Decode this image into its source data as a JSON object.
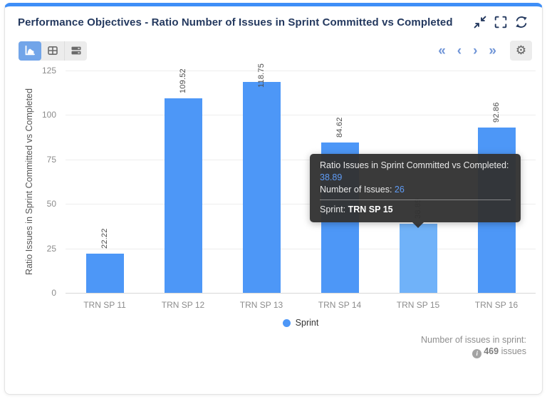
{
  "header": {
    "title": "Performance Objectives - Ratio Number of Issues in Sprint Committed vs Completed"
  },
  "toolbar": {
    "pagination": {
      "first": "«",
      "prev": "‹",
      "next": "›",
      "last": "»"
    },
    "gear_glyph": "⚙"
  },
  "chart_data": {
    "type": "bar",
    "categories": [
      "TRN SP 11",
      "TRN SP 12",
      "TRN SP 13",
      "TRN SP 14",
      "TRN SP 15",
      "TRN SP 16"
    ],
    "values": [
      22.22,
      109.52,
      118.75,
      84.62,
      38.89,
      92.86
    ],
    "value_labels": [
      "22.22",
      "109.52",
      "118.75",
      "84.62",
      "38.89",
      "92.86"
    ],
    "title": "Performance Objectives - Ratio Number of Issues in Sprint Committed vs Completed",
    "xlabel": "",
    "ylabel": "Ratio Issues in Sprint Committed vs Completed",
    "ylim": [
      0,
      125
    ],
    "yticks": [
      0,
      25,
      50,
      75,
      100,
      125
    ],
    "grid": true,
    "legend": [
      {
        "label": "Sprint",
        "color": "#4d97f7"
      }
    ],
    "legend_position": "bottom",
    "bar_color": "#4d97f7",
    "highlighted_index": 4,
    "highlighted_color": "#70b2f9"
  },
  "tooltip": {
    "ratio_label": "Ratio Issues in Sprint Committed vs Completed:",
    "ratio_value": "38.89",
    "issues_label": "Number of Issues: ",
    "issues_value": "26",
    "sprint_label": "Sprint: ",
    "sprint_value": "TRN SP 15"
  },
  "footer": {
    "label": "Number of issues in sprint:",
    "count": "469",
    "unit": " issues",
    "info_glyph": "i"
  },
  "colors": {
    "accent_blue": "#4d97f7",
    "hover_blue": "#70b2f9",
    "title_navy": "#24395f",
    "top_border": "#3e8ef7",
    "pagination_blue": "#7095d7",
    "tooltip_bg": "#323232",
    "tooltip_value_blue": "#5f9cf6",
    "active_button_blue": "#72a5e9"
  }
}
